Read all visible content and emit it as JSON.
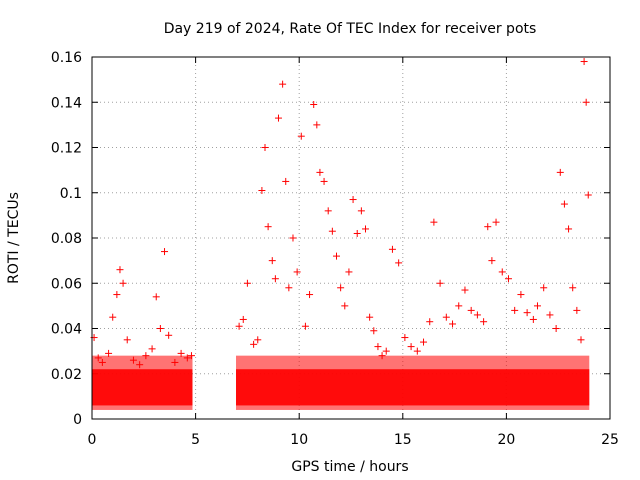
{
  "chart_data": {
    "type": "scatter",
    "title": "Day 219 of 2024, Rate Of TEC Index for receiver pots",
    "xlabel": "GPS time / hours",
    "ylabel": "ROTI / TECUs",
    "xlim": [
      0,
      25
    ],
    "ylim": [
      0,
      0.16
    ],
    "x_ticks": [
      0,
      5,
      10,
      15,
      20,
      25
    ],
    "x_tick_labels": [
      "0",
      "5",
      "10",
      "15",
      "20",
      "25"
    ],
    "y_ticks": [
      0,
      0.02,
      0.04,
      0.06,
      0.08,
      0.1,
      0.12,
      0.14,
      0.16
    ],
    "y_tick_labels": [
      "0",
      "0.02",
      "0.04",
      "0.06",
      "0.08",
      "0.1",
      "0.12",
      "0.14",
      "0.16"
    ],
    "grid": true,
    "marker": "+",
    "color": "#ff0000",
    "data_gap_hours": [
      4.85,
      6.95
    ],
    "series": [
      {
        "name": "ROTI",
        "x": [
          0.1,
          0.3,
          0.5,
          0.8,
          1.0,
          1.2,
          1.35,
          1.5,
          1.7,
          2.0,
          2.3,
          2.6,
          2.9,
          3.1,
          3.3,
          3.5,
          3.7,
          4.0,
          4.3,
          4.6,
          4.8,
          7.1,
          7.3,
          7.5,
          7.8,
          8.0,
          8.2,
          8.35,
          8.5,
          8.7,
          8.85,
          9.0,
          9.2,
          9.35,
          9.5,
          9.7,
          9.9,
          10.1,
          10.3,
          10.5,
          10.7,
          10.85,
          11.0,
          11.2,
          11.4,
          11.6,
          11.8,
          12.0,
          12.2,
          12.4,
          12.6,
          12.8,
          13.0,
          13.2,
          13.4,
          13.6,
          13.8,
          14.0,
          14.2,
          14.5,
          14.8,
          15.1,
          15.4,
          15.7,
          16.0,
          16.3,
          16.5,
          16.8,
          17.1,
          17.4,
          17.7,
          18.0,
          18.3,
          18.6,
          18.9,
          19.1,
          19.3,
          19.5,
          19.8,
          20.1,
          20.4,
          20.7,
          21.0,
          21.3,
          21.5,
          21.8,
          22.1,
          22.4,
          22.6,
          22.8,
          23.0,
          23.2,
          23.4,
          23.6,
          23.75,
          23.85,
          23.95
        ],
        "y": [
          0.036,
          0.027,
          0.025,
          0.029,
          0.045,
          0.055,
          0.066,
          0.06,
          0.035,
          0.026,
          0.024,
          0.028,
          0.031,
          0.054,
          0.04,
          0.074,
          0.037,
          0.025,
          0.029,
          0.027,
          0.028,
          0.041,
          0.044,
          0.06,
          0.033,
          0.035,
          0.101,
          0.12,
          0.085,
          0.07,
          0.062,
          0.133,
          0.148,
          0.105,
          0.058,
          0.08,
          0.065,
          0.125,
          0.041,
          0.055,
          0.139,
          0.13,
          0.109,
          0.105,
          0.092,
          0.083,
          0.072,
          0.058,
          0.05,
          0.065,
          0.097,
          0.082,
          0.092,
          0.084,
          0.045,
          0.039,
          0.032,
          0.028,
          0.03,
          0.075,
          0.069,
          0.036,
          0.032,
          0.03,
          0.034,
          0.043,
          0.087,
          0.06,
          0.045,
          0.042,
          0.05,
          0.057,
          0.048,
          0.046,
          0.043,
          0.085,
          0.07,
          0.087,
          0.065,
          0.062,
          0.048,
          0.055,
          0.047,
          0.044,
          0.05,
          0.058,
          0.046,
          0.04,
          0.109,
          0.095,
          0.084,
          0.058,
          0.048,
          0.035,
          0.158,
          0.14,
          0.099
        ]
      }
    ]
  }
}
